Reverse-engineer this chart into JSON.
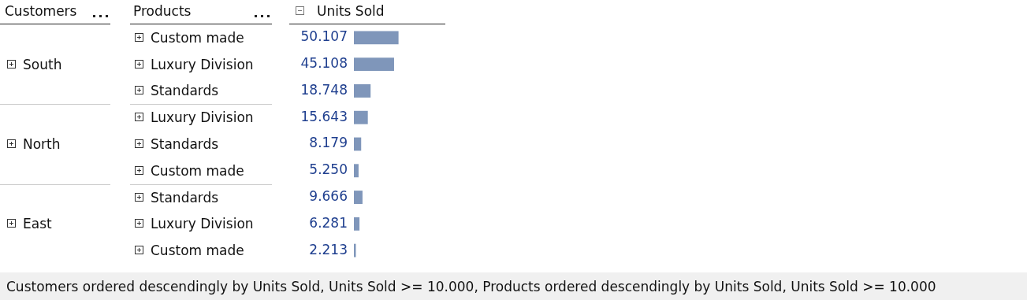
{
  "chart_data": {
    "type": "bar",
    "orientation": "horizontal",
    "title": "Customers",
    "ylabel": "Products",
    "xlabel": "Units Sold",
    "categories": [
      "Custom made",
      "Luxury Division",
      "Standards",
      "Luxury Division",
      "Standards",
      "Custom made",
      "Standards",
      "Luxury Division",
      "Custom made"
    ],
    "values": [
      50107,
      45108,
      18748,
      15643,
      8179,
      5250,
      9666,
      6281,
      2213
    ],
    "value_labels": [
      "50.107",
      "45.108",
      "18.748",
      "15.643",
      "8.179",
      "5.250",
      "9.666",
      "6.281",
      "2.213"
    ],
    "color": "#7f96ba",
    "annotations": [
      "South",
      "North",
      "East",
      "Customers ordered descendingly by Units Sold, Units Sold >= 10.000, Products ordered descendingly by Units Sold, Units Sold >= 10.000"
    ]
  }
}
